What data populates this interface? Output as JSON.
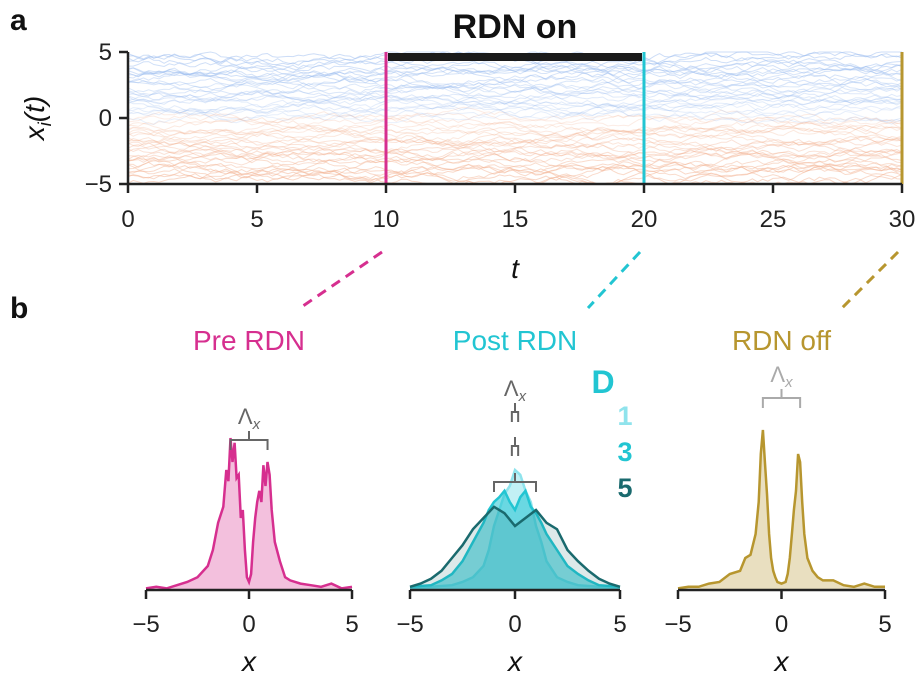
{
  "figure": {
    "panel_a_label": "a",
    "panel_b_label": "b",
    "colors": {
      "pre": "#d62f8f",
      "post": "#22c5d2",
      "off": "#b7962f",
      "axis": "#222222",
      "bracket": "#666666",
      "bracket_faded": "#aaaaaa",
      "trace_blue": "#9bbcef",
      "trace_orange": "#f2b08f"
    }
  },
  "chart_data": [
    {
      "type": "line",
      "panel": "a",
      "title": "RDN on",
      "xlabel": "t",
      "ylabel": "x_i(t)",
      "xlim": [
        0,
        30
      ],
      "ylim": [
        -5,
        5
      ],
      "xticks": [
        "0",
        "5",
        "10",
        "15",
        "20",
        "25",
        "30"
      ],
      "yticks": [
        "5",
        "0",
        "−5"
      ],
      "xtick_values": [
        0,
        5,
        10,
        15,
        20,
        25,
        30
      ],
      "ytick_values": [
        5,
        0,
        -5
      ],
      "rdn_on_interval": [
        10,
        20
      ],
      "markers": [
        {
          "t": 10,
          "color_key": "pre"
        },
        {
          "t": 20,
          "color_key": "post"
        },
        {
          "t": 30,
          "color_key": "off"
        }
      ],
      "grid": false,
      "note": "many overlapping trajectories x_i(t), positive shown bluish, negative orange"
    },
    {
      "type": "area",
      "panel": "b",
      "subplots": [
        {
          "id": "pre",
          "title": "Pre RDN",
          "xlabel": "x",
          "xlim": [
            -5,
            5
          ],
          "xticks": [
            "−5",
            "0",
            "5"
          ],
          "bracket_label": "Λ",
          "bracket_sub": "x",
          "brackets": [
            {
              "center": 0,
              "half_width": 0.9
            }
          ],
          "series": [
            {
              "color_key": "pre",
              "fill_opacity": 0.3,
              "x": [
                -5,
                -4.5,
                -4,
                -3.5,
                -3,
                -2.5,
                -2,
                -1.75,
                -1.5,
                -1.25,
                -1.1,
                -1,
                -0.9,
                -0.8,
                -0.7,
                -0.6,
                -0.5,
                -0.4,
                -0.3,
                -0.2,
                -0.1,
                0,
                0.1,
                0.2,
                0.3,
                0.4,
                0.5,
                0.6,
                0.7,
                0.8,
                0.9,
                1,
                1.1,
                1.25,
                1.5,
                1.75,
                2,
                2.5,
                3,
                3.5,
                4,
                4.5,
                5
              ],
              "y": [
                0.01,
                0.02,
                0.01,
                0.03,
                0.05,
                0.08,
                0.15,
                0.25,
                0.42,
                0.52,
                0.75,
                0.68,
                0.95,
                0.8,
                0.92,
                0.7,
                0.72,
                0.45,
                0.5,
                0.25,
                0.08,
                0.05,
                0.1,
                0.3,
                0.45,
                0.55,
                0.62,
                0.55,
                0.78,
                0.65,
                0.8,
                0.72,
                0.5,
                0.3,
                0.18,
                0.08,
                0.06,
                0.04,
                0.03,
                0.02,
                0.04,
                0.01,
                0.02
              ]
            }
          ]
        },
        {
          "id": "post",
          "title": "Post RDN",
          "xlabel": "x",
          "xlim": [
            -5,
            5
          ],
          "xticks": [
            "−5",
            "0",
            "5"
          ],
          "bracket_label": "Λ",
          "bracket_sub": "x",
          "brackets": [
            {
              "center": 0,
              "half_width": 0.15
            },
            {
              "center": 0,
              "half_width": 0.15
            },
            {
              "center": 0,
              "half_width": 1.0
            }
          ],
          "legend_title": "D",
          "legend_items": [
            {
              "label": "1",
              "color": "#8fe3ec"
            },
            {
              "label": "3",
              "color": "#22c5d2"
            },
            {
              "label": "5",
              "color": "#1a6a6e"
            }
          ],
          "series": [
            {
              "name": "1",
              "color": "#8fe3ec",
              "fill_opacity": 0.55,
              "x": [
                -5,
                -4,
                -3,
                -2.5,
                -2,
                -1.5,
                -1.25,
                -1,
                -0.75,
                -0.5,
                -0.25,
                0,
                0.25,
                0.5,
                0.75,
                1,
                1.25,
                1.5,
                2,
                2.5,
                3,
                4,
                5
              ],
              "y": [
                0.01,
                0.02,
                0.03,
                0.05,
                0.08,
                0.15,
                0.25,
                0.4,
                0.5,
                0.6,
                0.65,
                0.75,
                0.72,
                0.62,
                0.55,
                0.4,
                0.3,
                0.18,
                0.08,
                0.05,
                0.03,
                0.02,
                0.01
              ]
            },
            {
              "name": "3",
              "color": "#22c5d2",
              "fill_opacity": 0.55,
              "x": [
                -5,
                -4,
                -3.5,
                -3,
                -2.5,
                -2,
                -1.5,
                -1.25,
                -1,
                -0.75,
                -0.5,
                -0.25,
                0,
                0.25,
                0.5,
                0.75,
                1,
                1.25,
                1.5,
                2,
                2.5,
                3,
                3.5,
                4,
                5
              ],
              "y": [
                0.02,
                0.03,
                0.06,
                0.1,
                0.18,
                0.3,
                0.42,
                0.5,
                0.55,
                0.58,
                0.62,
                0.55,
                0.5,
                0.58,
                0.62,
                0.52,
                0.48,
                0.42,
                0.35,
                0.25,
                0.15,
                0.1,
                0.06,
                0.03,
                0.02
              ]
            },
            {
              "name": "5",
              "color": "#1a6a6e",
              "fill_opacity": 0.15,
              "x": [
                -5,
                -4.5,
                -4,
                -3.5,
                -3,
                -2.5,
                -2,
                -1.5,
                -1,
                -0.5,
                0,
                0.5,
                1,
                1.5,
                2,
                2.5,
                3,
                3.5,
                4,
                4.5,
                5
              ],
              "y": [
                0.02,
                0.04,
                0.07,
                0.12,
                0.2,
                0.28,
                0.38,
                0.45,
                0.52,
                0.48,
                0.4,
                0.45,
                0.5,
                0.42,
                0.38,
                0.25,
                0.18,
                0.12,
                0.07,
                0.04,
                0.02
              ]
            }
          ]
        },
        {
          "id": "off",
          "title": "RDN off",
          "xlabel": "x",
          "xlim": [
            -5,
            5
          ],
          "xticks": [
            "−5",
            "0",
            "5"
          ],
          "bracket_label": "Λ",
          "bracket_sub": "x",
          "bracket_faded": true,
          "brackets": [
            {
              "center": 0,
              "half_width": 0.9
            }
          ],
          "series": [
            {
              "color_key": "off",
              "fill_opacity": 0.3,
              "x": [
                -5,
                -4.5,
                -4,
                -3.5,
                -3,
                -2.5,
                -2,
                -1.75,
                -1.5,
                -1.25,
                -1.1,
                -1,
                -0.9,
                -0.8,
                -0.7,
                -0.6,
                -0.5,
                -0.4,
                -0.3,
                -0.2,
                0,
                0.2,
                0.3,
                0.4,
                0.5,
                0.6,
                0.7,
                0.8,
                0.9,
                1,
                1.1,
                1.25,
                1.5,
                1.75,
                2,
                2.5,
                3,
                3.5,
                4,
                4.5,
                5
              ],
              "y": [
                0.01,
                0.02,
                0.02,
                0.04,
                0.05,
                0.1,
                0.12,
                0.2,
                0.22,
                0.35,
                0.55,
                0.85,
                1.0,
                0.8,
                0.6,
                0.35,
                0.2,
                0.12,
                0.08,
                0.05,
                0.04,
                0.05,
                0.1,
                0.2,
                0.35,
                0.5,
                0.62,
                0.85,
                0.8,
                0.55,
                0.35,
                0.2,
                0.12,
                0.08,
                0.06,
                0.06,
                0.03,
                0.02,
                0.04,
                0.02,
                0.02
              ]
            }
          ]
        }
      ]
    }
  ]
}
